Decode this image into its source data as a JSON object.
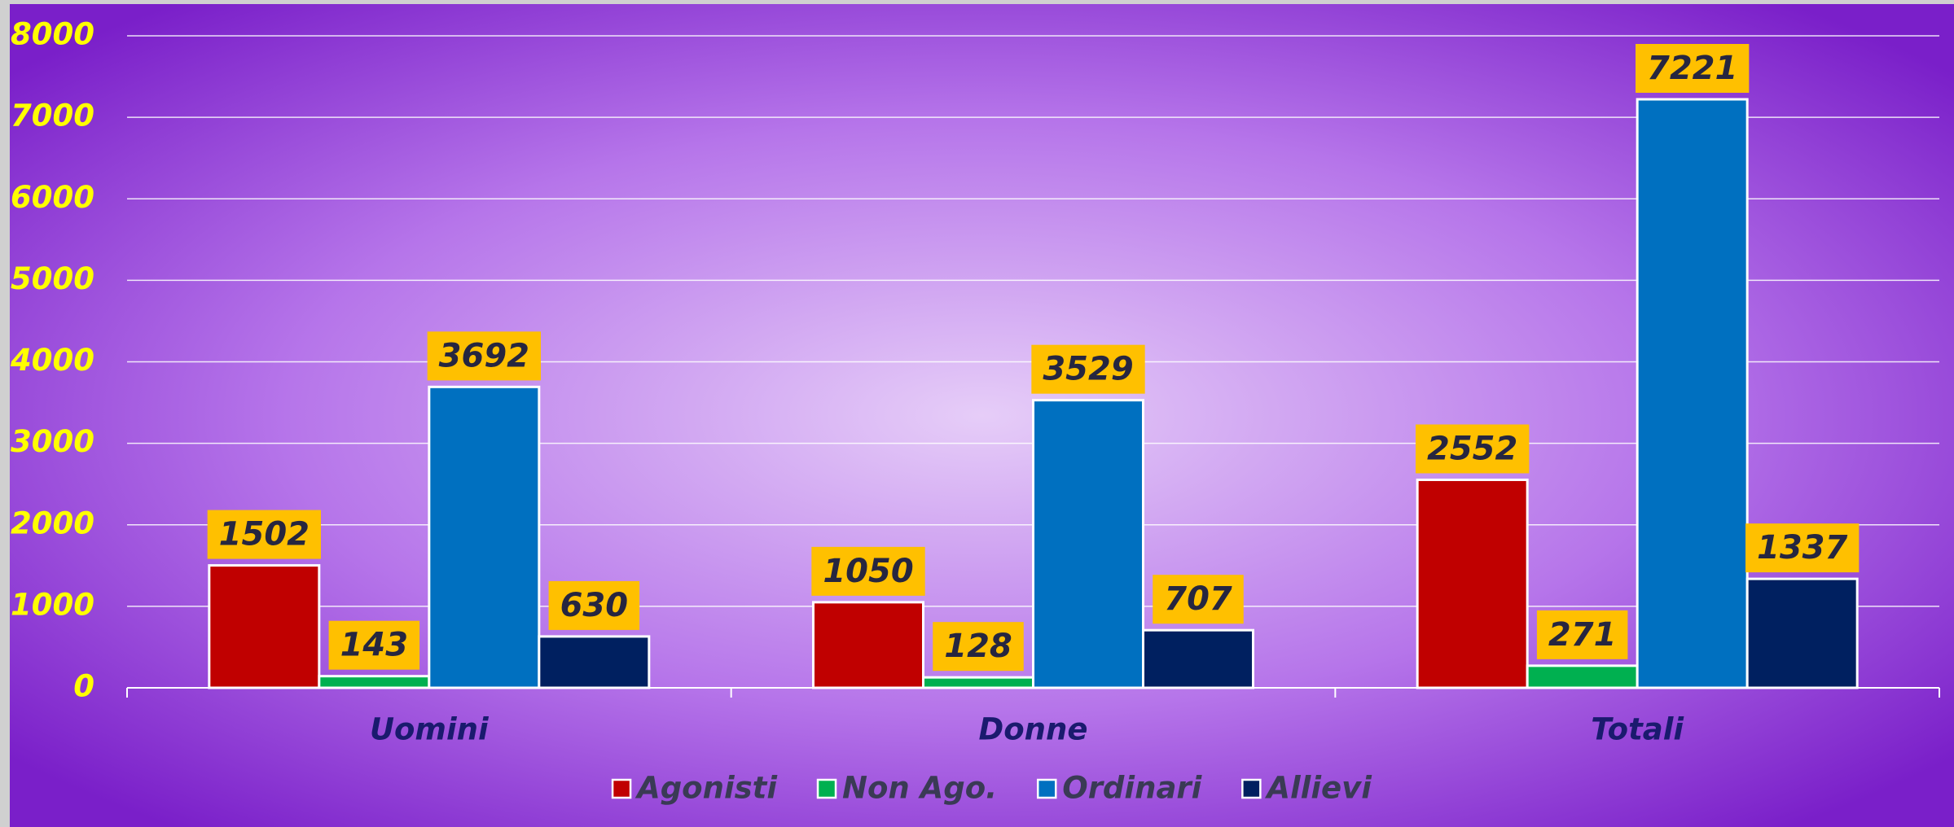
{
  "chart_data": {
    "type": "bar",
    "categories": [
      "Uomini",
      "Donne",
      "Totali"
    ],
    "series": [
      {
        "name": "Agonisti",
        "color": "#c00000",
        "values": [
          1502,
          1050,
          2552
        ]
      },
      {
        "name": "Non Ago.",
        "color": "#00b050",
        "values": [
          143,
          128,
          271
        ]
      },
      {
        "name": "Ordinari",
        "color": "#0070c0",
        "values": [
          3692,
          3529,
          7221
        ]
      },
      {
        "name": "Allievi",
        "color": "#002060",
        "values": [
          630,
          707,
          1337
        ]
      }
    ],
    "ylim": [
      0,
      8000
    ],
    "yticks": [
      0,
      1000,
      2000,
      3000,
      4000,
      5000,
      6000,
      7000,
      8000
    ],
    "grid": true,
    "legend": "bottom"
  }
}
